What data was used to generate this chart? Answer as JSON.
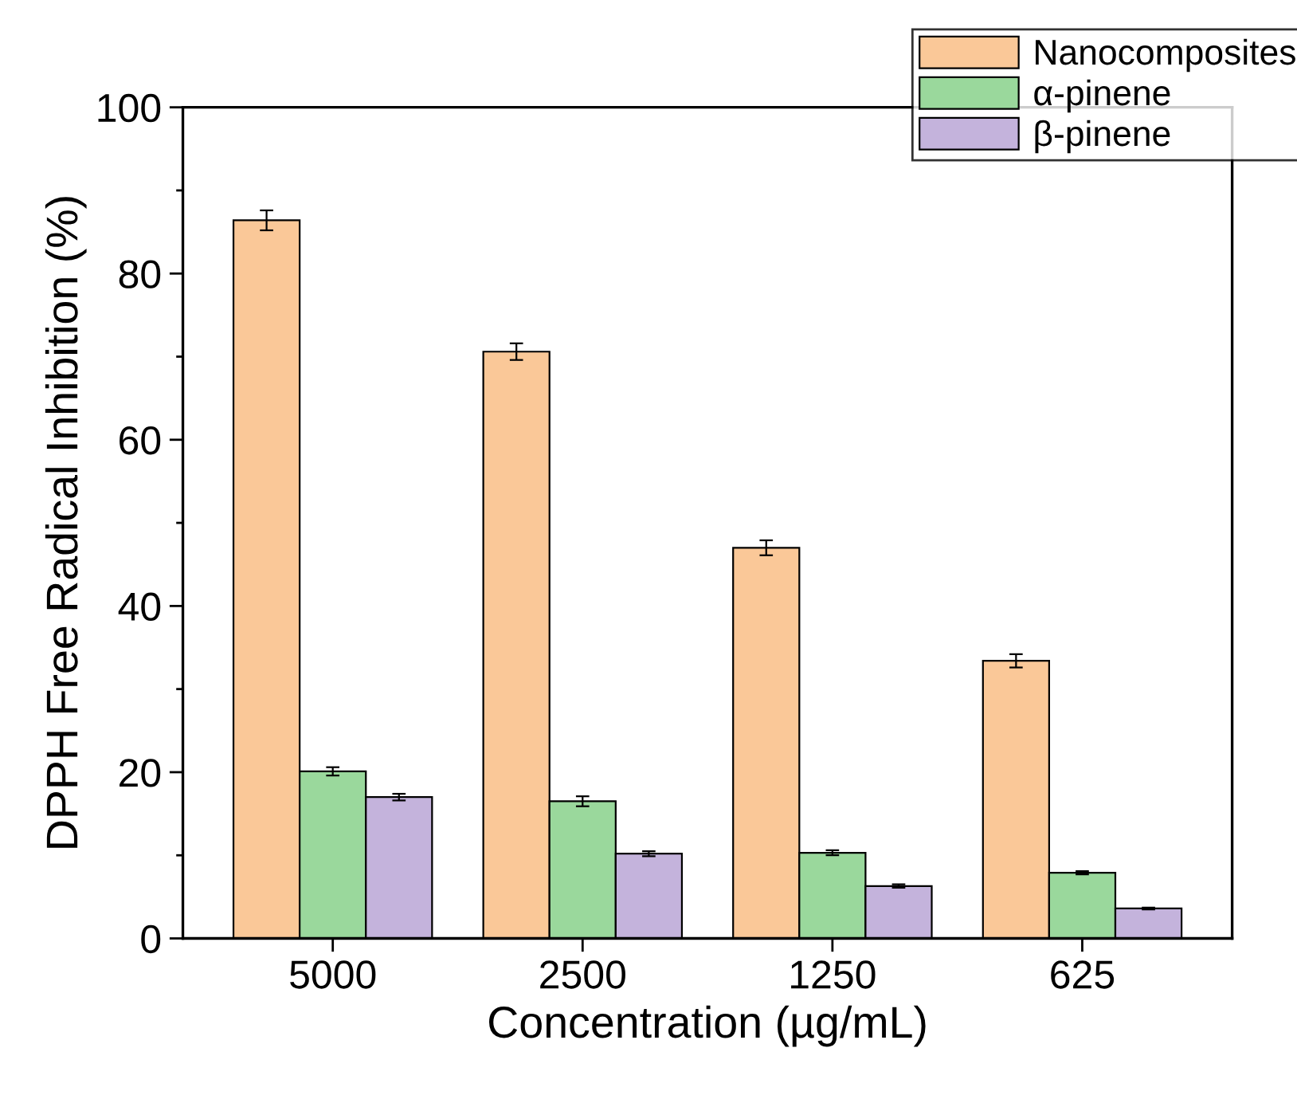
{
  "chart_data": {
    "type": "bar",
    "xlabel": "Concentration (µg/mL)",
    "ylabel": "DPPH Free Radical Inhibition (%)",
    "categories": [
      "5000",
      "2500",
      "1250",
      "625"
    ],
    "series": [
      {
        "name": "Nanocomposites",
        "color": "#fac898",
        "values": [
          86.4,
          70.6,
          47.0,
          33.4
        ],
        "errors": [
          1.2,
          1.0,
          0.9,
          0.8
        ]
      },
      {
        "name": "α-pinene",
        "color": "#9ad89c",
        "values": [
          20.1,
          16.5,
          10.3,
          7.9
        ],
        "errors": [
          0.5,
          0.6,
          0.3,
          0.2
        ]
      },
      {
        "name": "β-pinene",
        "color": "#c4b3dc",
        "values": [
          17.0,
          10.2,
          6.3,
          3.6
        ],
        "errors": [
          0.4,
          0.3,
          0.2,
          0.1
        ]
      }
    ],
    "ylim": [
      0,
      100
    ],
    "yticks": [
      0,
      20,
      40,
      60,
      80,
      100
    ],
    "grid": false,
    "legend": "top right"
  }
}
